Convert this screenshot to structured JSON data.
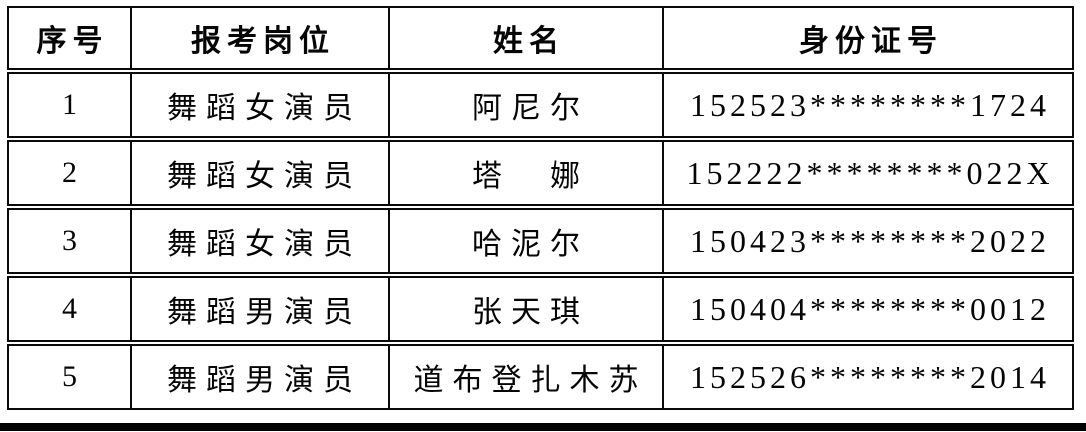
{
  "page": {
    "background_color": "#ffffff",
    "rule_color": "#000000",
    "border_color": "#0a0a0a"
  },
  "table": {
    "columns": {
      "serial": "序号",
      "position": "报考岗位",
      "name": "姓名",
      "id_number": "身份证号"
    },
    "rows": [
      {
        "serial": "1",
        "position": "舞蹈女演员",
        "name": "阿尼尔",
        "id_number": "152523********1724"
      },
      {
        "serial": "2",
        "position": "舞蹈女演员",
        "name": "塔　娜",
        "id_number": "152222********022X"
      },
      {
        "serial": "3",
        "position": "舞蹈女演员",
        "name": "哈泥尔",
        "id_number": "150423********2022"
      },
      {
        "serial": "4",
        "position": "舞蹈男演员",
        "name": "张天琪",
        "id_number": "150404********0012"
      },
      {
        "serial": "5",
        "position": "舞蹈男演员",
        "name": "道布登扎木苏",
        "id_number": "152526********2014"
      }
    ]
  }
}
